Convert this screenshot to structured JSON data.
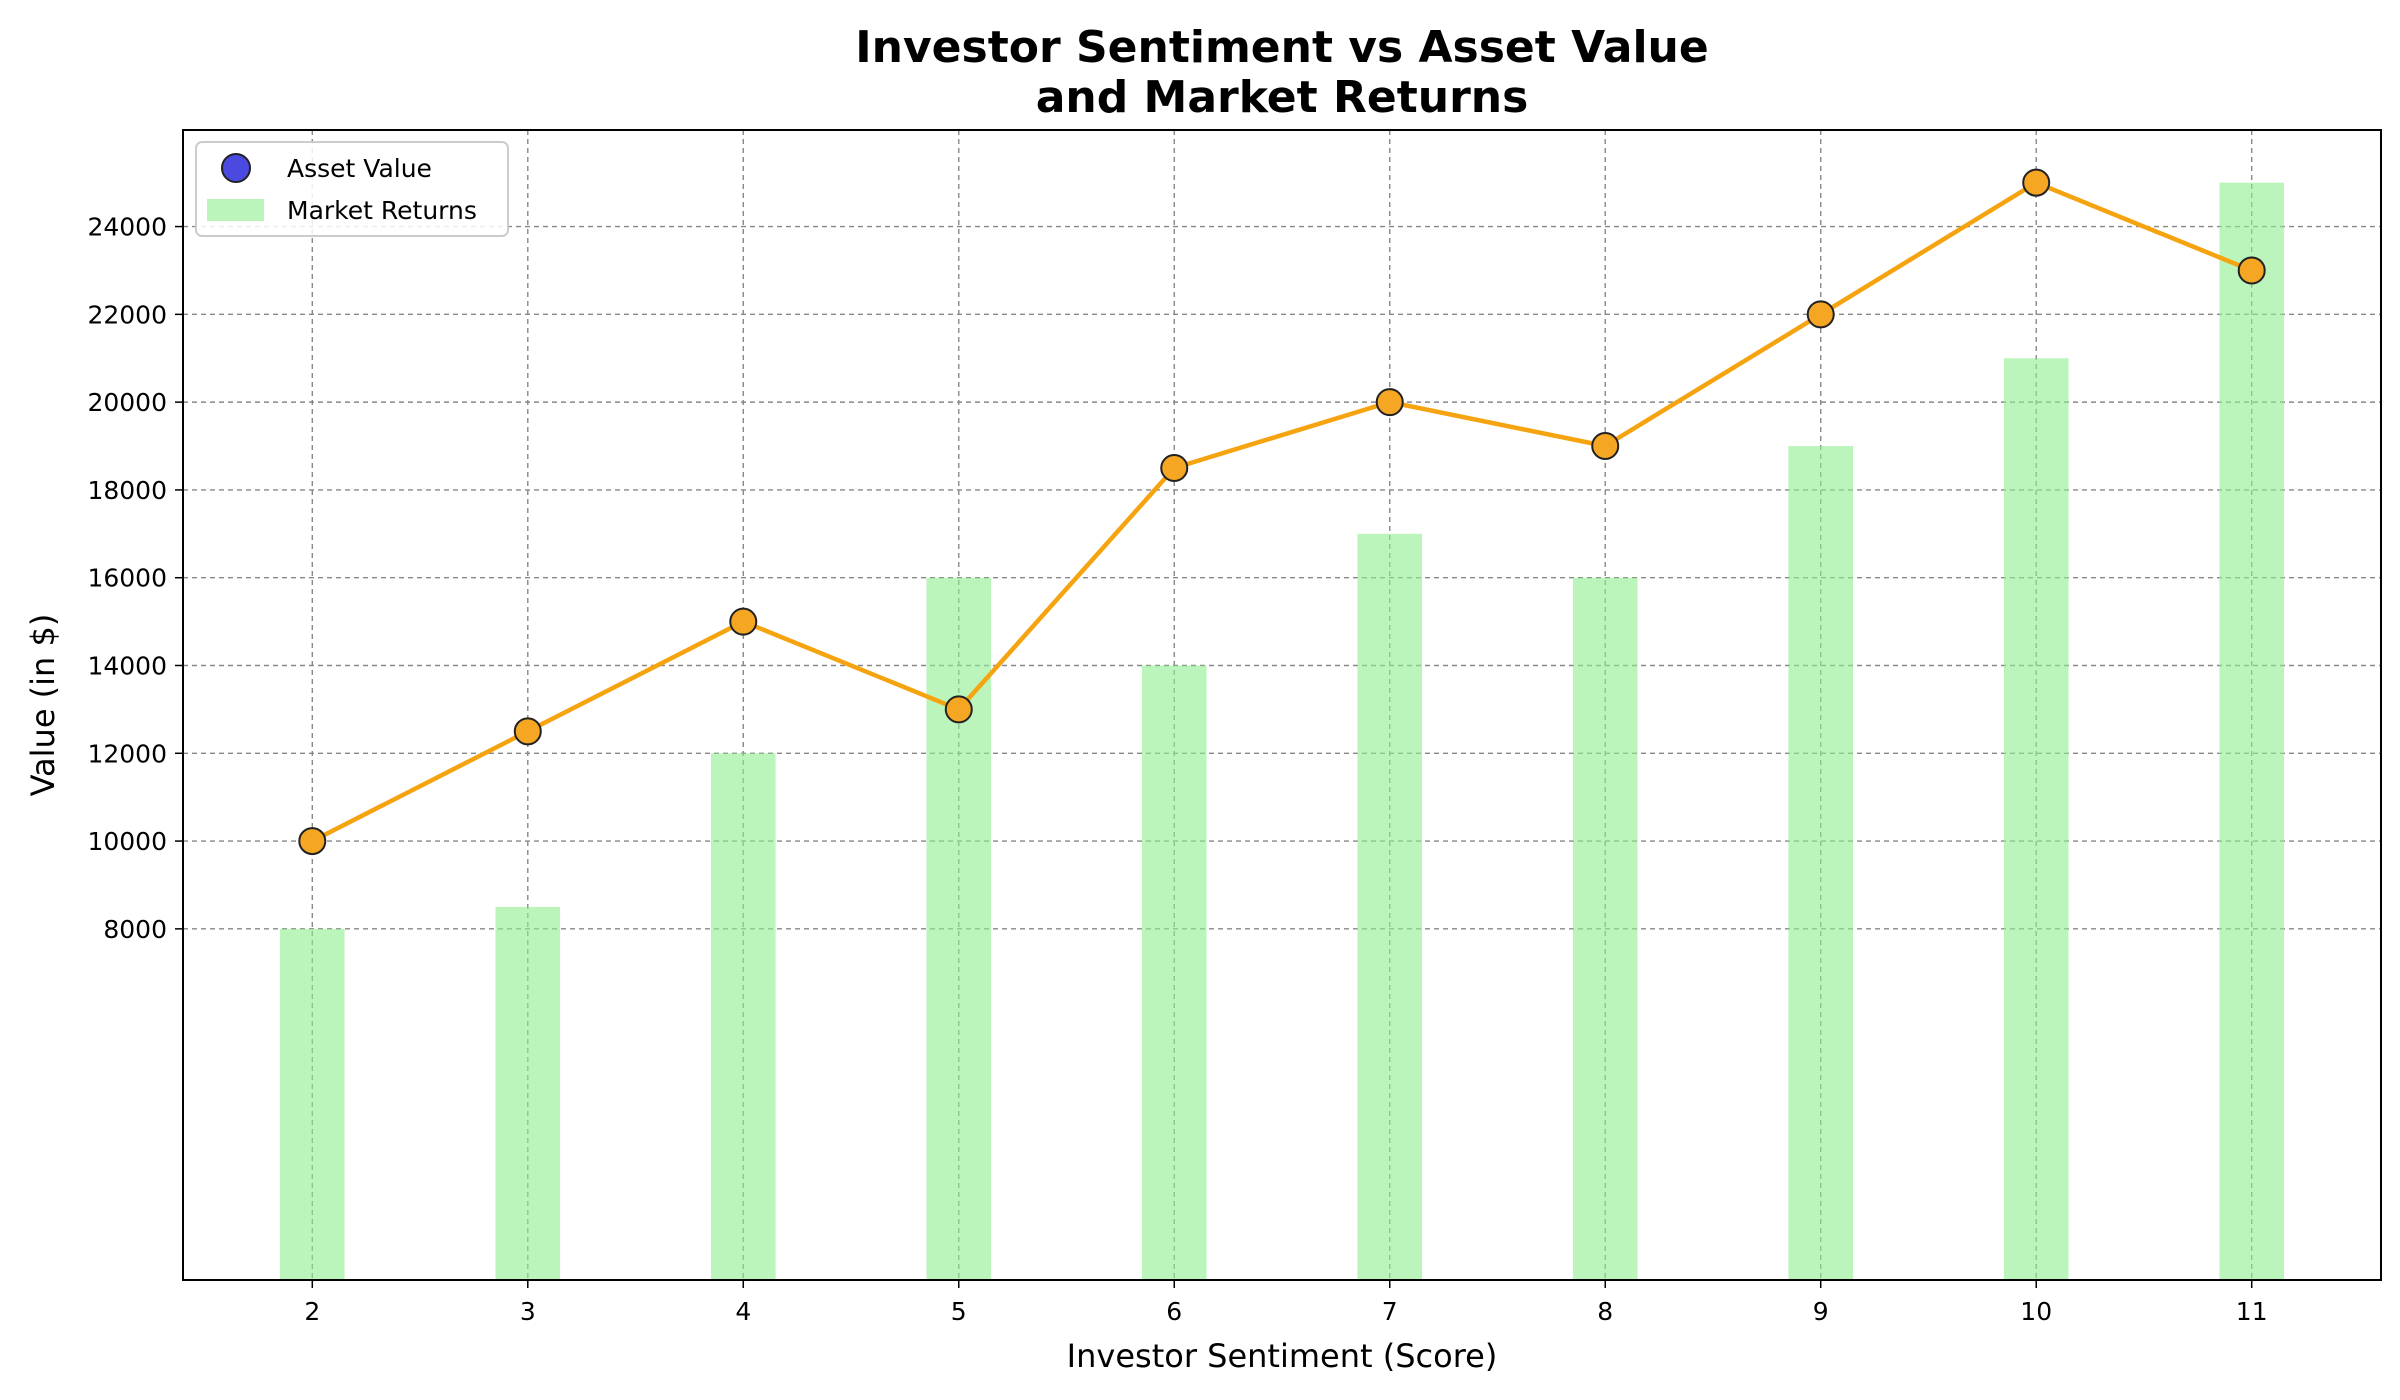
{
  "chart_data": {
    "type": "bar+line",
    "title_line1": "Investor Sentiment vs Asset Value",
    "title_line2": "and Market Returns",
    "xlabel": "Investor Sentiment (Score)",
    "ylabel": "Value (in $)",
    "x": [
      2,
      3,
      4,
      5,
      6,
      7,
      8,
      9,
      10,
      11
    ],
    "xlim": [
      1.4,
      11.6
    ],
    "ylim": [
      0,
      26200
    ],
    "yticks": [
      8000,
      10000,
      12000,
      14000,
      16000,
      18000,
      20000,
      22000,
      24000
    ],
    "grid": true,
    "legend_placement": "upper-left",
    "series": [
      {
        "name": "Asset Value",
        "kind": "line+scatter",
        "values": [
          10000,
          12500,
          15000,
          13000,
          18500,
          20000,
          19000,
          22000,
          25000,
          23000
        ],
        "line_color": "#f5a30f",
        "marker_color": "#f5a623",
        "legend_marker_color": "#4a4ae0"
      },
      {
        "name": "Market Returns",
        "kind": "bar",
        "values": [
          8000,
          8500,
          12000,
          16000,
          14000,
          17000,
          16000,
          19000,
          21000,
          25000
        ],
        "color": "#90ee90"
      }
    ]
  }
}
